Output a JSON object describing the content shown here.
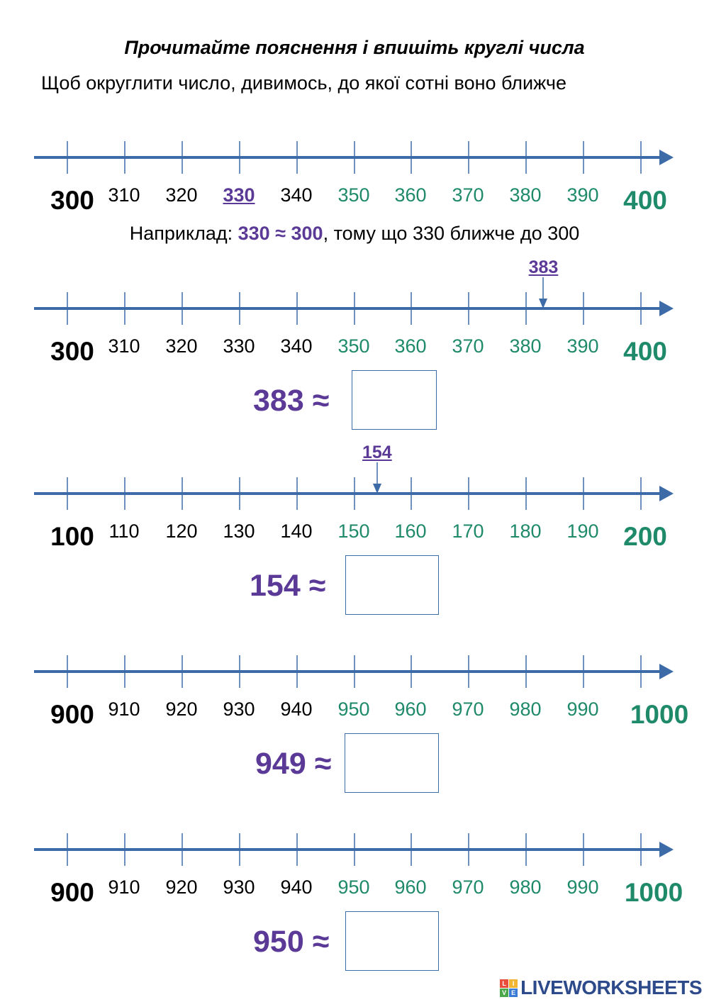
{
  "title": "Прочитайте пояснення і впишіть круглі числа",
  "subtitle": "Щоб округлити число, дивимось, до якої сотні воно ближче",
  "example": {
    "prefix": "Наприклад: ",
    "highlight": "330 ≈ 300",
    "suffix": ", тому що 330 ближче до 300"
  },
  "colors": {
    "line": "#3d6ba8",
    "green": "#1f8a6a",
    "purple": "#5b3a97"
  },
  "number_lines": [
    {
      "start": "300",
      "end": "400",
      "labels": [
        "310",
        "320",
        "330",
        "340",
        "350",
        "360",
        "370",
        "380",
        "390"
      ],
      "marked_label_index": 2,
      "marker": null
    },
    {
      "start": "300",
      "end": "400",
      "labels": [
        "310",
        "320",
        "330",
        "340",
        "350",
        "360",
        "370",
        "380",
        "390"
      ],
      "marked_label_index": null,
      "marker": {
        "label": "383",
        "value": 383
      }
    },
    {
      "start": "100",
      "end": "200",
      "labels": [
        "110",
        "120",
        "130",
        "140",
        "150",
        "160",
        "170",
        "180",
        "190"
      ],
      "marked_label_index": null,
      "marker": {
        "label": "154",
        "value": 154
      }
    },
    {
      "start": "900",
      "end": "1000",
      "labels": [
        "910",
        "920",
        "930",
        "940",
        "950",
        "960",
        "970",
        "980",
        "990"
      ],
      "marked_label_index": null,
      "marker": null
    },
    {
      "start": "900",
      "end": "1000",
      "labels": [
        "910",
        "920",
        "930",
        "940",
        "950",
        "960",
        "970",
        "980",
        "990"
      ],
      "marked_label_index": null,
      "marker": null
    }
  ],
  "tasks": [
    {
      "text": "383 ≈",
      "answer": ""
    },
    {
      "text": "154 ≈",
      "answer": ""
    },
    {
      "text": "949 ≈",
      "answer": ""
    },
    {
      "text": "950 ≈",
      "answer": ""
    }
  ],
  "footer": {
    "brand": "LIVEWORKSHEETS",
    "logo_letters": [
      "L",
      "I",
      "V",
      "E"
    ]
  }
}
